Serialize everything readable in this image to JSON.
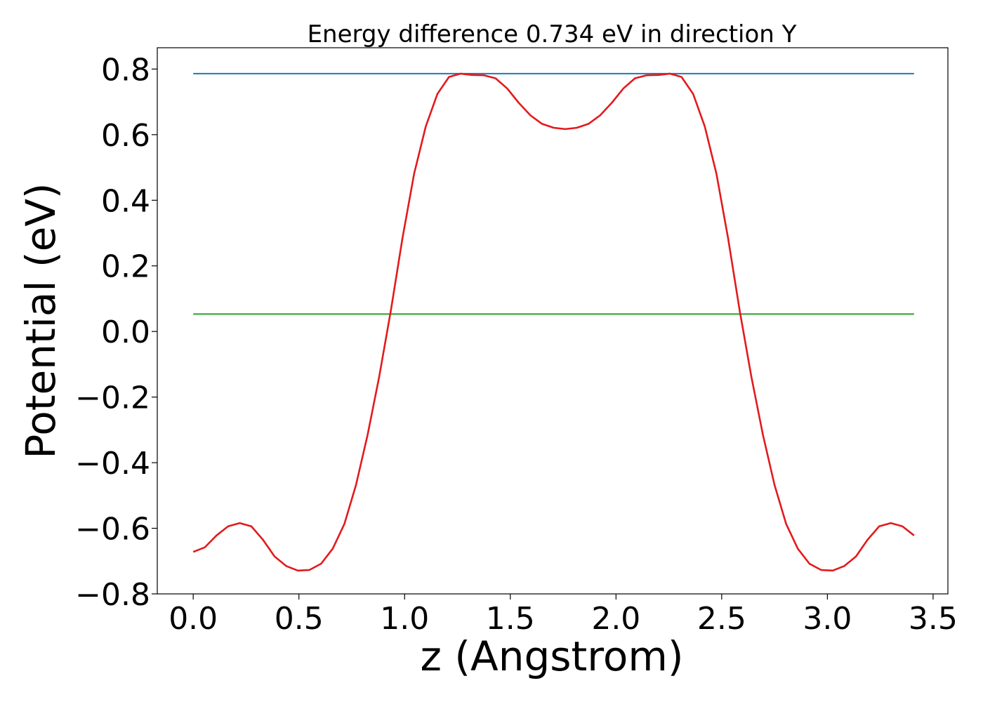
{
  "chart_data": {
    "type": "line",
    "title": "Energy difference 0.734 eV in direction Y",
    "xlabel": "z (Angstrom)",
    "ylabel": "Potential (eV)",
    "xlim": [
      -0.17,
      3.57
    ],
    "ylim": [
      -0.8,
      0.865
    ],
    "xticks": [
      0.0,
      0.5,
      1.0,
      1.5,
      2.0,
      2.5,
      3.0,
      3.5
    ],
    "xtick_labels": [
      "0.0",
      "0.5",
      "1.0",
      "1.5",
      "2.0",
      "2.5",
      "3.0",
      "3.5"
    ],
    "yticks": [
      -0.8,
      -0.6,
      -0.4,
      -0.2,
      0.0,
      0.2,
      0.4,
      0.6,
      0.8
    ],
    "ytick_labels": [
      "−0.8",
      "−0.6",
      "−0.4",
      "−0.2",
      "0.0",
      "0.2",
      "0.4",
      "0.6",
      "0.8"
    ],
    "grid": false,
    "legend": "none",
    "series": [
      {
        "color": "#1f77b4",
        "x": [
          0.0,
          3.41
        ],
        "y": [
          0.786,
          0.786
        ]
      },
      {
        "color": "#2ca02c",
        "x": [
          0.0,
          3.41
        ],
        "y": [
          0.053,
          0.053
        ]
      },
      {
        "color": "#e31a1c",
        "x": [
          0.0,
          0.055,
          0.11,
          0.165,
          0.22,
          0.275,
          0.33,
          0.385,
          0.44,
          0.495,
          0.55,
          0.605,
          0.66,
          0.715,
          0.77,
          0.825,
          0.88,
          0.935,
          0.99,
          1.045,
          1.1,
          1.155,
          1.21,
          1.265,
          1.32,
          1.375,
          1.43,
          1.485,
          1.54,
          1.595,
          1.65,
          1.705,
          1.76,
          1.815,
          1.87,
          1.925,
          1.98,
          2.035,
          2.09,
          2.145,
          2.2,
          2.255,
          2.31,
          2.365,
          2.42,
          2.475,
          2.53,
          2.585,
          2.64,
          2.695,
          2.75,
          2.805,
          2.86,
          2.915,
          2.97,
          3.025,
          3.08,
          3.135,
          3.19,
          3.245,
          3.3,
          3.355,
          3.41
        ],
        "y": [
          -0.672,
          -0.658,
          -0.622,
          -0.594,
          -0.584,
          -0.594,
          -0.635,
          -0.686,
          -0.715,
          -0.729,
          -0.727,
          -0.708,
          -0.662,
          -0.587,
          -0.468,
          -0.315,
          -0.137,
          0.064,
          0.285,
          0.481,
          0.625,
          0.724,
          0.776,
          0.786,
          0.782,
          0.781,
          0.772,
          0.741,
          0.697,
          0.659,
          0.633,
          0.621,
          0.617,
          0.621,
          0.633,
          0.659,
          0.697,
          0.741,
          0.772,
          0.781,
          0.782,
          0.786,
          0.776,
          0.724,
          0.625,
          0.481,
          0.285,
          0.064,
          -0.137,
          -0.315,
          -0.468,
          -0.587,
          -0.662,
          -0.708,
          -0.727,
          -0.729,
          -0.715,
          -0.686,
          -0.635,
          -0.594,
          -0.584,
          -0.594,
          -0.622
        ]
      }
    ]
  }
}
